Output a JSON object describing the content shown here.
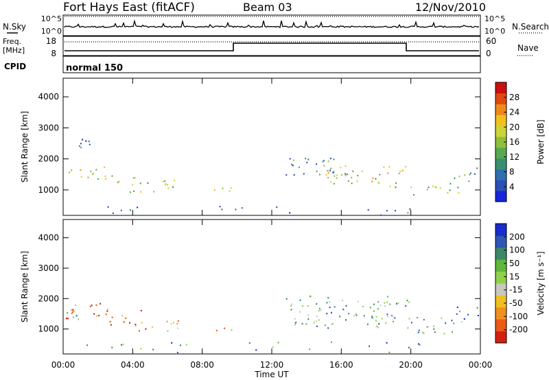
{
  "header": {
    "title": "Fort Hays East (fitACF)",
    "beam": "Beam 03",
    "date": "12/Nov/2010"
  },
  "strip_labels": {
    "nsky": "N.Sky",
    "nsearch": "N.Search",
    "freq": "Freq.",
    "freq_unit": "[MHz]",
    "nave": "Nave",
    "cpid": "CPID",
    "cpid_value": "normal 150",
    "nsky_ticks": [
      "10^5",
      "10^0"
    ],
    "nsearch_ticks": [
      "10^5",
      "10^0"
    ],
    "freq_ticks": [
      "18",
      "8"
    ],
    "nave_ticks": [
      "60",
      "0"
    ]
  },
  "chart_data": [
    {
      "type": "heatmap",
      "name": "power",
      "ylabel": "Slant Range [km]",
      "xlabel": "",
      "xlim": [
        "00:00",
        "24:00"
      ],
      "ylim": [
        180,
        4600
      ],
      "x_ticks": [
        "00:00",
        "04:00",
        "08:00",
        "12:00",
        "16:00",
        "20:00",
        "00:00"
      ],
      "y_ticks": [
        "1000",
        "2000",
        "3000",
        "4000"
      ],
      "colorbar": {
        "label": "Power [dB]",
        "ticks": [
          "4",
          "8",
          "12",
          "16",
          "20",
          "24",
          "28"
        ],
        "colors": [
          "#1726d6",
          "#2a4fb5",
          "#2f6fb0",
          "#3a8f6e",
          "#58a84f",
          "#8fc03c",
          "#cdd43a",
          "#f0c020",
          "#ef8a1a",
          "#e04a12",
          "#cc1010"
        ]
      },
      "scatter_regions": [
        {
          "t0": 0.1,
          "t1": 2.6,
          "r0": 1350,
          "r1": 1800,
          "level": 0.55
        },
        {
          "t0": 2.6,
          "t1": 4.2,
          "r0": 1150,
          "r1": 1500,
          "level": 0.5
        },
        {
          "t0": 3.8,
          "t1": 6.6,
          "r0": 950,
          "r1": 1400,
          "level": 0.45
        },
        {
          "t0": 0.6,
          "t1": 2.3,
          "r0": 2350,
          "r1": 2700,
          "level": 0.25
        },
        {
          "t0": 8.3,
          "t1": 9.7,
          "r0": 950,
          "r1": 1200,
          "level": 0.6
        },
        {
          "t0": 12.8,
          "t1": 16.5,
          "r0": 1500,
          "r1": 2100,
          "level": 0.35
        },
        {
          "t0": 15.0,
          "t1": 19.8,
          "r0": 1100,
          "r1": 1800,
          "level": 0.55
        },
        {
          "t0": 19.8,
          "t1": 22.8,
          "r0": 850,
          "r1": 1250,
          "level": 0.5
        },
        {
          "t0": 22.4,
          "t1": 23.9,
          "r0": 1300,
          "r1": 1800,
          "level": 0.35
        },
        {
          "t0": 1.0,
          "t1": 21.0,
          "r0": 200,
          "r1": 500,
          "level": 0.2
        }
      ]
    },
    {
      "type": "heatmap",
      "name": "velocity",
      "ylabel": "Slant Range [km]",
      "xlabel": "Time UT",
      "xlim": [
        "00:00",
        "24:00"
      ],
      "ylim": [
        180,
        4600
      ],
      "x_ticks": [
        "00:00",
        "04:00",
        "08:00",
        "12:00",
        "16:00",
        "20:00",
        "00:00"
      ],
      "y_ticks": [
        "1000",
        "2000",
        "3000",
        "4000"
      ],
      "colorbar": {
        "label": "Velocity [m s⁻¹]",
        "ticks": [
          "200",
          "100",
          "50",
          "15",
          "-15",
          "-50",
          "-100",
          "-200"
        ],
        "colors": [
          "#1a2ccc",
          "#2f56b6",
          "#3a8a68",
          "#5fb63c",
          "#8fd24a",
          "#c8c8c0",
          "#f0c020",
          "#f09020",
          "#ea5a18",
          "#d42010"
        ]
      },
      "scatter_regions": [
        {
          "t0": 0.1,
          "t1": 2.4,
          "r0": 1350,
          "r1": 1900,
          "level": 0.85
        },
        {
          "t0": 2.4,
          "t1": 4.6,
          "r0": 1150,
          "r1": 1700,
          "level": 0.9
        },
        {
          "t0": 3.8,
          "t1": 6.6,
          "r0": 900,
          "r1": 1300,
          "level": 0.7
        },
        {
          "t0": 0.1,
          "t1": 1.2,
          "r0": 1300,
          "r1": 1700,
          "level": 0.35
        },
        {
          "t0": 8.3,
          "t1": 9.7,
          "r0": 950,
          "r1": 1150,
          "level": 0.65
        },
        {
          "t0": 12.8,
          "t1": 19.9,
          "r0": 1050,
          "r1": 2100,
          "level": 0.35
        },
        {
          "t0": 19.8,
          "t1": 23.0,
          "r0": 850,
          "r1": 1400,
          "level": 0.3
        },
        {
          "t0": 22.6,
          "t1": 23.9,
          "r0": 1300,
          "r1": 1800,
          "level": 0.2
        },
        {
          "t0": 1.0,
          "t1": 21.0,
          "r0": 200,
          "r1": 600,
          "level": 0.25
        }
      ]
    }
  ]
}
